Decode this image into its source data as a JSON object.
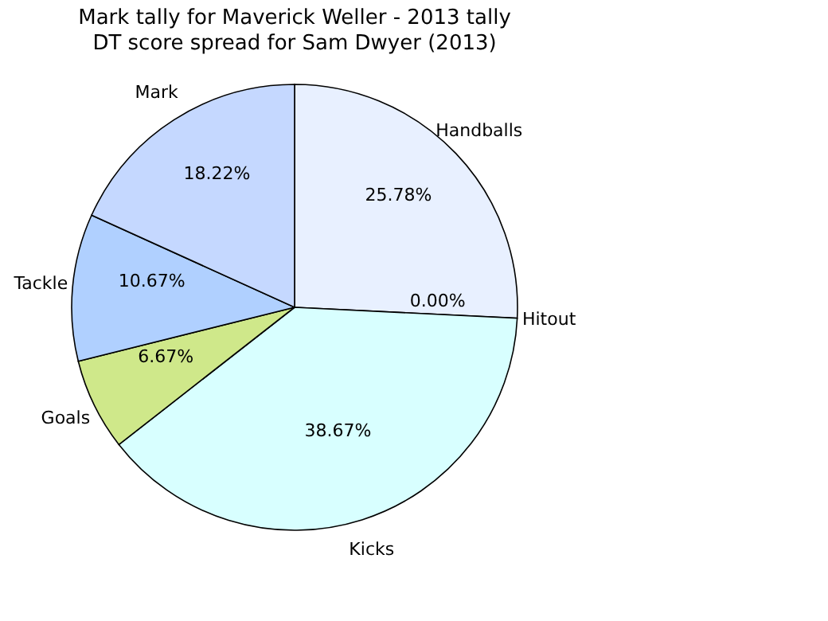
{
  "chart_data": {
    "type": "pie",
    "title": "Mark tally for Maverick Weller - 2013 tally",
    "subtitle": "DT score spread for Sam Dwyer (2013)",
    "categories": [
      "Handballs",
      "Hitout",
      "Kicks",
      "Goals",
      "Tackle",
      "Mark"
    ],
    "values": [
      25.78,
      0.0,
      38.67,
      6.67,
      10.67,
      18.22
    ],
    "colors": [
      "#e8f0ff",
      "#ffe0e0",
      "#d8ffff",
      "#cfe88a",
      "#b0d0ff",
      "#c5d8ff"
    ],
    "value_labels": [
      "25.78%",
      "0.00%",
      "38.67%",
      "6.67%",
      "10.67%",
      "18.22%"
    ],
    "legend": false
  }
}
